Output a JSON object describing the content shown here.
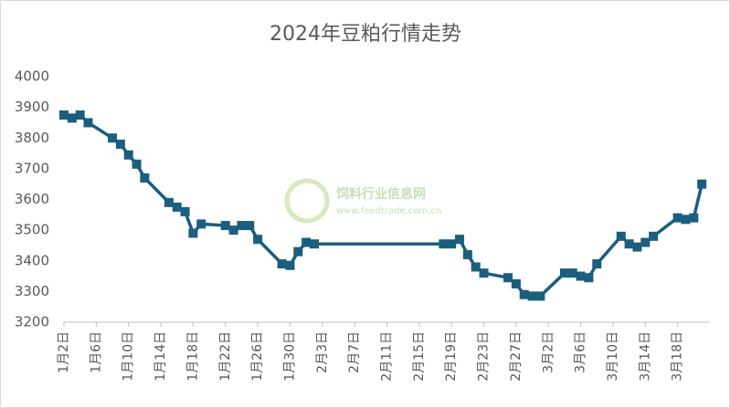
{
  "chart_data": {
    "type": "line",
    "title": "2024年豆粕行情走势",
    "watermark": [
      "饲料行业信息网",
      "www.feedtrade.com.cn"
    ],
    "x": [
      "1月2日",
      "1月3日",
      "1月4日",
      "1月5日",
      "1月8日",
      "1月9日",
      "1月10日",
      "1月11日",
      "1月12日",
      "1月15日",
      "1月16日",
      "1月17日",
      "1月18日",
      "1月19日",
      "1月22日",
      "1月23日",
      "1月24日",
      "1月25日",
      "1月26日",
      "1月29日",
      "1月30日",
      "1月31日",
      "2月1日",
      "2月2日",
      "2月18日",
      "2月19日",
      "2月20日",
      "2月21日",
      "2月22日",
      "2月23日",
      "2月26日",
      "2月27日",
      "2月28日",
      "2月29日",
      "3月1日",
      "3月4日",
      "3月5日",
      "3月6日",
      "3月7日",
      "3月8日",
      "3月11日",
      "3月12日",
      "3月13日",
      "3月14日",
      "3月15日",
      "3月18日",
      "3月19日",
      "3月20日",
      "3月21日"
    ],
    "series": [
      {
        "color": "#1b5e7e",
        "values": [
          3875,
          3865,
          3875,
          3850,
          3800,
          3780,
          3745,
          3715,
          3670,
          3590,
          3575,
          3560,
          3490,
          3520,
          3515,
          3500,
          3515,
          3515,
          3470,
          3390,
          3385,
          3430,
          3460,
          3455,
          3455,
          3455,
          3470,
          3420,
          3380,
          3360,
          3345,
          3325,
          3290,
          3285,
          3285,
          3360,
          3360,
          3350,
          3345,
          3390,
          3480,
          3455,
          3445,
          3460,
          3480,
          3540,
          3535,
          3540,
          3650
        ]
      }
    ],
    "xlim": [
      "1月2日",
      "3月22日"
    ],
    "xticks": [
      "1月2日",
      "1月6日",
      "1月10日",
      "1月14日",
      "1月18日",
      "1月22日",
      "1月26日",
      "1月30日",
      "2月3日",
      "2月7日",
      "2月11日",
      "2月15日",
      "2月19日",
      "2月23日",
      "2月27日",
      "3月2日",
      "3月6日",
      "3月10日",
      "3月14日",
      "3月18日"
    ],
    "ylim": [
      3200,
      4000
    ],
    "yticks": [
      3200,
      3300,
      3400,
      3500,
      3600,
      3700,
      3800,
      3900,
      4000
    ],
    "grid": false
  }
}
